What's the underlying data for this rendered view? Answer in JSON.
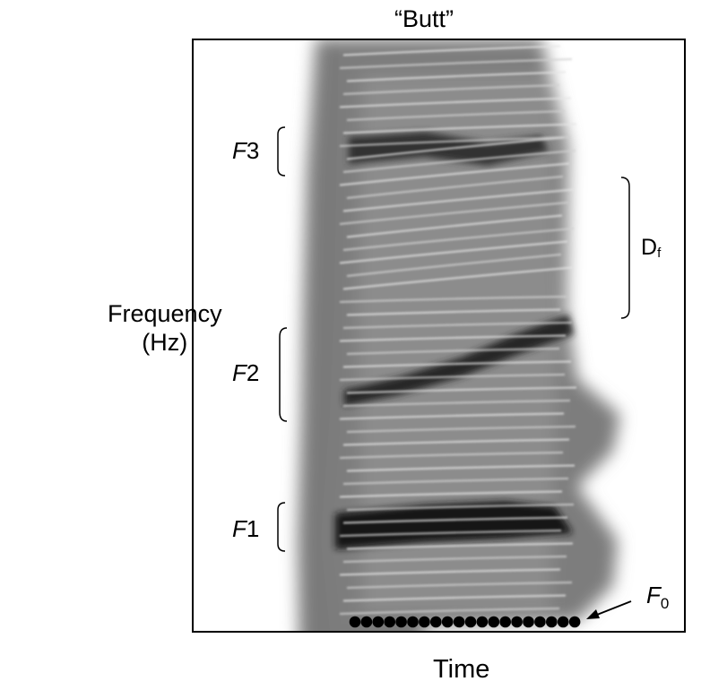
{
  "title": "“Butt”",
  "y_axis": {
    "line1": "Frequency",
    "line2": "(Hz)"
  },
  "x_axis": {
    "label": "Time"
  },
  "formants": [
    {
      "letter": "F",
      "index": "3"
    },
    {
      "letter": "F",
      "index": "2"
    },
    {
      "letter": "F",
      "index": "1"
    }
  ],
  "df_label": {
    "base": "D",
    "sub": "f"
  },
  "f0_label": {
    "letter": "F",
    "sub": "0"
  },
  "f0_dot_count": 20,
  "colors": {
    "background": "#ffffff",
    "ink": "#000000",
    "spectrogram_dark": "#1a1a1a",
    "spectrogram_light": "#f2f2f2"
  }
}
